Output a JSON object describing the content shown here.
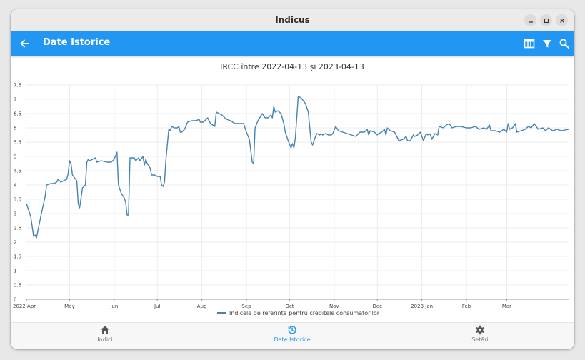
{
  "window": {
    "title": "Indicus"
  },
  "appbar": {
    "title": "Date Istorice"
  },
  "icons": {
    "back": "arrow-left-icon",
    "table": "table-icon",
    "filter": "filter-icon",
    "search": "search-icon",
    "minimize": "minimize-icon",
    "maximize": "maximize-icon",
    "close": "close-icon"
  },
  "colors": {
    "accent": "#2196f3",
    "series": "#4682b4"
  },
  "bottom_nav": [
    {
      "label": "Indici",
      "icon": "home-icon",
      "active": false
    },
    {
      "label": "Date Istorice",
      "icon": "history-icon",
      "active": true
    },
    {
      "label": "Setări",
      "icon": "gear-icon",
      "active": false
    }
  ],
  "chart_data": {
    "type": "line",
    "title": "IRCC între 2022-04-13 și 2023-04-13",
    "xlabel": "",
    "ylabel": "",
    "ylim": [
      0,
      7.5
    ],
    "yticks": [
      0,
      0.5,
      1,
      1.5,
      2,
      2.5,
      3,
      3.5,
      4,
      4.5,
      5,
      5.5,
      6,
      6.5,
      7,
      7.5
    ],
    "xlim": [
      "2022-04-01",
      "2023-04-13"
    ],
    "xticks": [
      {
        "date": "2022-04-01",
        "label": "2022 Apr"
      },
      {
        "date": "2022-05-01",
        "label": "May"
      },
      {
        "date": "2022-06-01",
        "label": "Jun"
      },
      {
        "date": "2022-07-01",
        "label": "Jul"
      },
      {
        "date": "2022-08-01",
        "label": "Aug"
      },
      {
        "date": "2022-09-01",
        "label": "Sep"
      },
      {
        "date": "2022-10-01",
        "label": "Oct"
      },
      {
        "date": "2022-11-01",
        "label": "Nov"
      },
      {
        "date": "2022-12-01",
        "label": "Dec"
      },
      {
        "date": "2023-01-01",
        "label": "2023 Jan"
      },
      {
        "date": "2023-02-01",
        "label": "Feb"
      },
      {
        "date": "2023-03-01",
        "label": "Mar"
      }
    ],
    "grid": true,
    "legend_position": "bottom",
    "series": [
      {
        "name": "Indicele de referință pentru creditele consumatorilor",
        "points": [
          [
            "2022-04-01",
            3.35
          ],
          [
            "2022-04-04",
            2.9
          ],
          [
            "2022-04-06",
            2.2
          ],
          [
            "2022-04-07",
            2.25
          ],
          [
            "2022-04-08",
            2.15
          ],
          [
            "2022-04-11",
            2.9
          ],
          [
            "2022-04-14",
            3.6
          ],
          [
            "2022-04-15",
            4.0
          ],
          [
            "2022-04-18",
            4.05
          ],
          [
            "2022-04-20",
            4.05
          ],
          [
            "2022-04-22",
            4.1
          ],
          [
            "2022-04-23",
            4.2
          ],
          [
            "2022-04-25",
            4.1
          ],
          [
            "2022-04-29",
            4.2
          ],
          [
            "2022-04-30",
            4.4
          ],
          [
            "2022-05-01",
            4.85
          ],
          [
            "2022-05-02",
            4.75
          ],
          [
            "2022-05-03",
            4.35
          ],
          [
            "2022-05-06",
            4.15
          ],
          [
            "2022-05-07",
            3.35
          ],
          [
            "2022-05-08",
            3.2
          ],
          [
            "2022-05-10",
            3.9
          ],
          [
            "2022-05-12",
            4.0
          ],
          [
            "2022-05-13",
            4.8
          ],
          [
            "2022-05-14",
            4.9
          ],
          [
            "2022-05-15",
            4.85
          ],
          [
            "2022-05-17",
            4.9
          ],
          [
            "2022-05-19",
            4.95
          ],
          [
            "2022-05-20",
            4.8
          ],
          [
            "2022-05-23",
            4.85
          ],
          [
            "2022-05-27",
            4.8
          ],
          [
            "2022-05-30",
            4.8
          ],
          [
            "2022-06-01",
            4.9
          ],
          [
            "2022-06-03",
            5.15
          ],
          [
            "2022-06-04",
            4.0
          ],
          [
            "2022-06-06",
            3.7
          ],
          [
            "2022-06-08",
            3.55
          ],
          [
            "2022-06-09",
            3.4
          ],
          [
            "2022-06-10",
            2.95
          ],
          [
            "2022-06-11",
            2.95
          ],
          [
            "2022-06-12",
            4.95
          ],
          [
            "2022-06-15",
            4.95
          ],
          [
            "2022-06-16",
            4.85
          ],
          [
            "2022-06-18",
            4.95
          ],
          [
            "2022-06-19",
            4.85
          ],
          [
            "2022-06-21",
            5.0
          ],
          [
            "2022-06-22",
            4.7
          ],
          [
            "2022-06-23",
            4.9
          ],
          [
            "2022-06-24",
            4.75
          ],
          [
            "2022-06-26",
            4.6
          ],
          [
            "2022-06-27",
            4.35
          ],
          [
            "2022-06-29",
            4.35
          ],
          [
            "2022-07-01",
            4.3
          ],
          [
            "2022-07-03",
            4.3
          ],
          [
            "2022-07-04",
            4.0
          ],
          [
            "2022-07-05",
            3.95
          ],
          [
            "2022-07-06",
            4.1
          ],
          [
            "2022-07-07",
            4.9
          ],
          [
            "2022-07-09",
            5.95
          ],
          [
            "2022-07-10",
            5.9
          ],
          [
            "2022-07-11",
            6.05
          ],
          [
            "2022-07-13",
            6.0
          ],
          [
            "2022-07-15",
            6.0
          ],
          [
            "2022-07-16",
            6.05
          ],
          [
            "2022-07-17",
            5.85
          ],
          [
            "2022-07-18",
            5.85
          ],
          [
            "2022-07-20",
            5.95
          ],
          [
            "2022-07-22",
            6.2
          ],
          [
            "2022-07-25",
            6.25
          ],
          [
            "2022-07-28",
            6.25
          ],
          [
            "2022-07-30",
            6.3
          ],
          [
            "2022-07-31",
            6.2
          ],
          [
            "2022-08-02",
            6.2
          ],
          [
            "2022-08-05",
            6.35
          ],
          [
            "2022-08-07",
            6.15
          ],
          [
            "2022-08-10",
            6.05
          ],
          [
            "2022-08-11",
            6.55
          ],
          [
            "2022-08-13",
            6.5
          ],
          [
            "2022-08-15",
            6.45
          ],
          [
            "2022-08-18",
            6.3
          ],
          [
            "2022-08-21",
            6.25
          ],
          [
            "2022-08-24",
            6.15
          ],
          [
            "2022-08-27",
            6.15
          ],
          [
            "2022-08-30",
            6.15
          ],
          [
            "2022-09-01",
            5.85
          ],
          [
            "2022-09-03",
            5.6
          ],
          [
            "2022-09-05",
            4.8
          ],
          [
            "2022-09-06",
            4.75
          ],
          [
            "2022-09-07",
            6.0
          ],
          [
            "2022-09-09",
            6.25
          ],
          [
            "2022-09-12",
            6.5
          ],
          [
            "2022-09-14",
            6.35
          ],
          [
            "2022-09-16",
            6.35
          ],
          [
            "2022-09-18",
            6.45
          ],
          [
            "2022-09-19",
            6.35
          ],
          [
            "2022-09-20",
            6.75
          ],
          [
            "2022-09-21",
            6.55
          ],
          [
            "2022-09-23",
            6.6
          ],
          [
            "2022-09-25",
            6.5
          ],
          [
            "2022-09-27",
            6.15
          ],
          [
            "2022-09-28",
            5.85
          ],
          [
            "2022-09-30",
            5.55
          ],
          [
            "2022-10-02",
            5.3
          ],
          [
            "2022-10-03",
            5.45
          ],
          [
            "2022-10-04",
            5.3
          ],
          [
            "2022-10-05",
            5.65
          ],
          [
            "2022-10-07",
            7.1
          ],
          [
            "2022-10-09",
            7.05
          ],
          [
            "2022-10-12",
            6.85
          ],
          [
            "2022-10-14",
            6.55
          ],
          [
            "2022-10-16",
            5.5
          ],
          [
            "2022-10-17",
            5.4
          ],
          [
            "2022-10-19",
            5.7
          ],
          [
            "2022-10-20",
            5.8
          ],
          [
            "2022-10-22",
            5.75
          ],
          [
            "2022-10-23",
            5.8
          ],
          [
            "2022-10-24",
            5.75
          ],
          [
            "2022-10-26",
            5.8
          ],
          [
            "2022-10-28",
            5.75
          ],
          [
            "2022-10-30",
            5.75
          ],
          [
            "2022-10-31",
            5.8
          ],
          [
            "2022-11-02",
            6.05
          ],
          [
            "2022-11-04",
            5.9
          ],
          [
            "2022-11-07",
            5.85
          ],
          [
            "2022-11-10",
            5.8
          ],
          [
            "2022-11-13",
            5.75
          ],
          [
            "2022-11-16",
            5.7
          ],
          [
            "2022-11-19",
            5.85
          ],
          [
            "2022-11-22",
            5.85
          ],
          [
            "2022-11-24",
            5.95
          ],
          [
            "2022-11-25",
            5.75
          ],
          [
            "2022-11-26",
            5.9
          ],
          [
            "2022-11-29",
            5.85
          ],
          [
            "2022-12-01",
            5.75
          ],
          [
            "2022-12-02",
            5.8
          ],
          [
            "2022-12-04",
            5.85
          ],
          [
            "2022-12-06",
            5.95
          ],
          [
            "2022-12-07",
            5.75
          ],
          [
            "2022-12-08",
            6.0
          ],
          [
            "2022-12-10",
            5.9
          ],
          [
            "2022-12-13",
            5.85
          ],
          [
            "2022-12-15",
            5.65
          ],
          [
            "2022-12-16",
            5.55
          ],
          [
            "2022-12-19",
            5.6
          ],
          [
            "2022-12-21",
            5.7
          ],
          [
            "2022-12-22",
            5.55
          ],
          [
            "2022-12-24",
            5.55
          ],
          [
            "2022-12-26",
            5.75
          ],
          [
            "2022-12-27",
            5.7
          ],
          [
            "2022-12-29",
            5.75
          ],
          [
            "2022-12-31",
            5.85
          ],
          [
            "2023-01-02",
            5.55
          ],
          [
            "2023-01-04",
            5.8
          ],
          [
            "2023-01-05",
            5.75
          ],
          [
            "2023-01-06",
            5.8
          ],
          [
            "2023-01-07",
            5.75
          ],
          [
            "2023-01-08",
            5.6
          ],
          [
            "2023-01-10",
            5.8
          ],
          [
            "2023-01-12",
            5.75
          ],
          [
            "2023-01-13",
            6.05
          ],
          [
            "2023-01-16",
            6.0
          ],
          [
            "2023-01-18",
            6.1
          ],
          [
            "2023-01-20",
            6.15
          ],
          [
            "2023-01-22",
            6.0
          ],
          [
            "2023-01-25",
            6.05
          ],
          [
            "2023-01-28",
            6.05
          ],
          [
            "2023-02-01",
            6.0
          ],
          [
            "2023-02-04",
            6.0
          ],
          [
            "2023-02-07",
            6.05
          ],
          [
            "2023-02-10",
            5.95
          ],
          [
            "2023-02-13",
            6.0
          ],
          [
            "2023-02-15",
            5.95
          ],
          [
            "2023-02-17",
            6.1
          ],
          [
            "2023-02-18",
            5.9
          ],
          [
            "2023-02-21",
            5.9
          ],
          [
            "2023-02-24",
            5.85
          ],
          [
            "2023-02-27",
            5.95
          ],
          [
            "2023-03-01",
            5.85
          ],
          [
            "2023-03-02",
            6.15
          ],
          [
            "2023-03-03",
            5.95
          ],
          [
            "2023-03-05",
            6.0
          ],
          [
            "2023-03-07",
            6.15
          ],
          [
            "2023-03-08",
            5.85
          ],
          [
            "2023-03-11",
            5.9
          ],
          [
            "2023-03-14",
            5.95
          ],
          [
            "2023-03-16",
            6.05
          ],
          [
            "2023-03-18",
            6.0
          ],
          [
            "2023-03-20",
            6.15
          ],
          [
            "2023-03-23",
            5.95
          ],
          [
            "2023-03-26",
            6.0
          ],
          [
            "2023-03-28",
            5.9
          ],
          [
            "2023-03-30",
            6.0
          ],
          [
            "2023-04-02",
            5.9
          ],
          [
            "2023-04-05",
            5.95
          ],
          [
            "2023-04-08",
            5.9
          ],
          [
            "2023-04-13",
            5.95
          ]
        ]
      }
    ]
  }
}
